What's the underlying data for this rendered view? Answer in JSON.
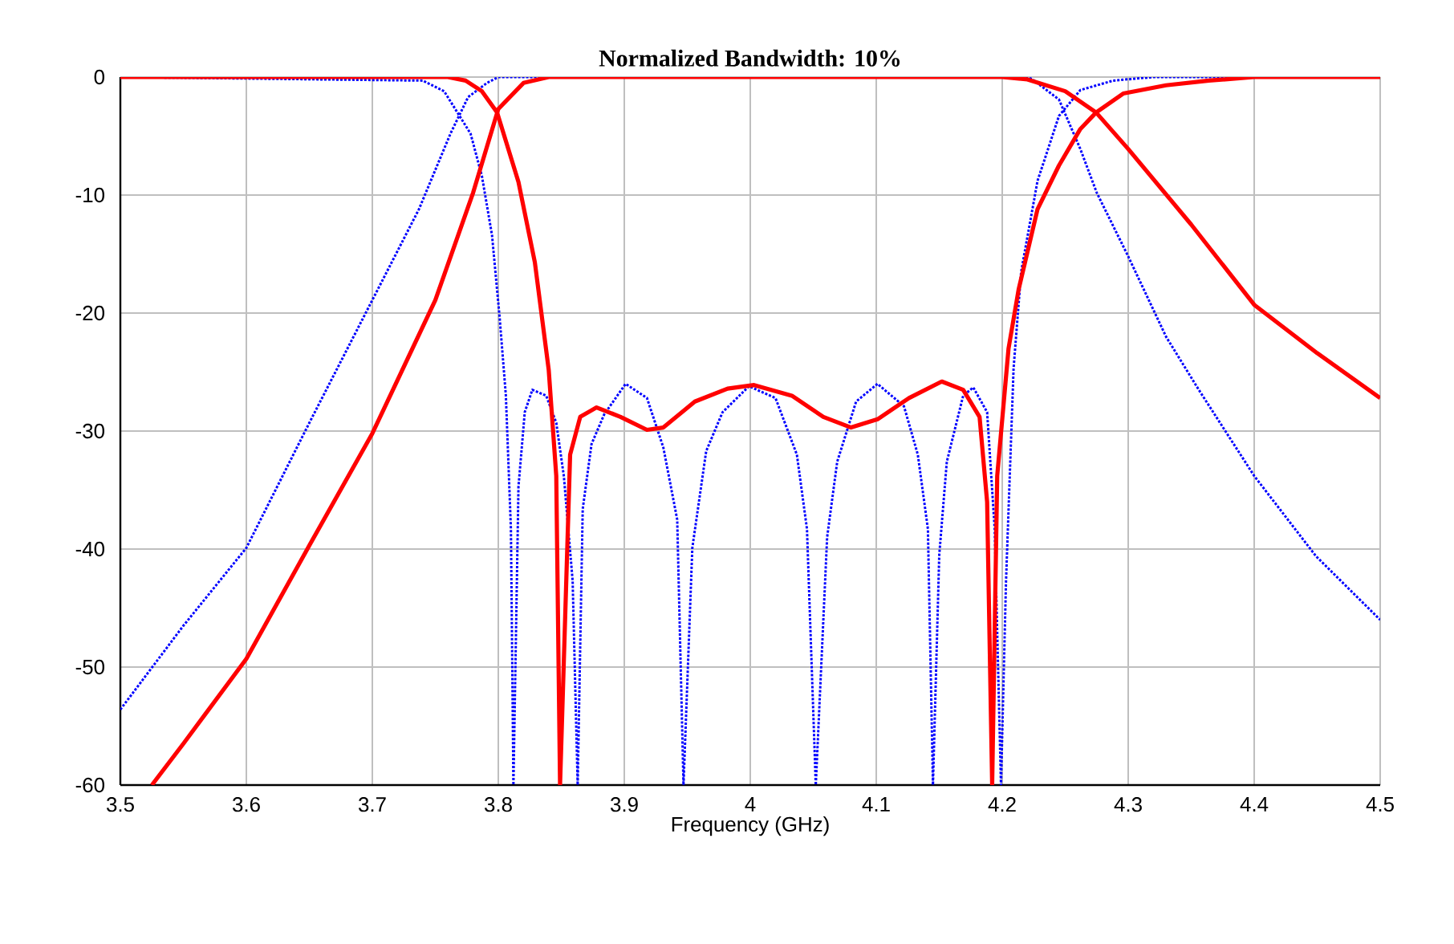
{
  "chart_data": {
    "type": "line",
    "title": "Normalized Bandwidth: 10%",
    "xlabel": "Frequency (GHz)",
    "xlim": [
      3.5,
      4.5
    ],
    "ylim": [
      -60,
      0
    ],
    "xticks": [
      3.5,
      3.6,
      3.7,
      3.8,
      3.9,
      4,
      4.1,
      4.2,
      4.3,
      4.4,
      4.5
    ],
    "yticks": [
      -60,
      -50,
      -40,
      -30,
      -20,
      -10,
      0
    ],
    "grid": true,
    "marker": "none",
    "series": [
      {
        "color": "#0000ff",
        "line_style": "dotted",
        "x": [
          3.5,
          3.55,
          3.6,
          3.65,
          3.7,
          3.737,
          3.762,
          3.776,
          3.791,
          3.8,
          4.22,
          4.224,
          4.245,
          4.262,
          4.275,
          4.3,
          4.33,
          4.356,
          4.4,
          4.449,
          4.5
        ],
        "values": [
          -53.6,
          -46.5,
          -39.9,
          -29.3,
          -18.9,
          -11.2,
          -4.8,
          -1.7,
          -0.5,
          0,
          0,
          -0.2,
          -1.9,
          -6.1,
          -9.8,
          -15.2,
          -22,
          -26.5,
          -33.8,
          -40.6,
          -46
        ]
      },
      {
        "color": "#0000ff",
        "line_style": "dotted",
        "x": [
          3.5,
          3.74,
          3.757,
          3.778,
          3.787,
          3.795,
          3.801,
          3.806,
          3.81,
          3.812,
          3.816,
          3.821,
          3.827,
          3.838,
          3.846,
          3.852,
          3.859,
          3.863,
          3.867,
          3.874,
          3.884,
          3.901,
          3.918,
          3.931,
          3.942,
          3.947,
          3.954,
          3.965,
          3.978,
          3.999,
          4.02,
          4.037,
          4.045,
          4.052,
          4.061,
          4.069,
          4.084,
          4.101,
          4.122,
          4.133,
          4.141,
          4.145,
          4.15,
          4.156,
          4.169,
          4.177,
          4.188,
          4.194,
          4.199,
          4.203,
          4.209,
          4.215,
          4.228,
          4.245,
          4.262,
          4.288,
          4.32,
          4.5
        ],
        "values": [
          0,
          -0.3,
          -1.2,
          -4.8,
          -8.4,
          -13.4,
          -20.3,
          -27,
          -38.3,
          -60,
          -34.7,
          -28.4,
          -26.5,
          -27,
          -29.3,
          -33.8,
          -42.7,
          -60,
          -36.6,
          -31.1,
          -28.6,
          -26,
          -27.2,
          -31.4,
          -37.5,
          -60,
          -39.9,
          -31.7,
          -28.4,
          -26.2,
          -27.2,
          -32,
          -38.3,
          -60,
          -39,
          -32.6,
          -27.5,
          -26,
          -27.9,
          -32,
          -38.3,
          -60,
          -40.5,
          -32.6,
          -27,
          -26.3,
          -28.4,
          -38.3,
          -60,
          -42.7,
          -24.7,
          -16.5,
          -8.8,
          -3.3,
          -1.1,
          -0.3,
          0,
          0
        ]
      },
      {
        "color": "#ff0000",
        "line_style": "solid",
        "x": [
          3.525,
          3.55,
          3.6,
          3.65,
          3.7,
          3.75,
          3.78,
          3.8,
          3.82,
          3.84,
          4.2,
          4.22,
          4.25,
          4.2745,
          4.3,
          4.35,
          4.4,
          4.45,
          4.5
        ],
        "values": [
          -60,
          -56.5,
          -49.3,
          -39.7,
          -30.2,
          -18.9,
          -9.8,
          -2.7,
          -0.5,
          0,
          0,
          -0.2,
          -1.2,
          -3,
          -6.1,
          -12.5,
          -19.3,
          -23.4,
          -27.2
        ]
      },
      {
        "color": "#ff0000",
        "line_style": "solid",
        "x": [
          3.5,
          3.76,
          3.774,
          3.787,
          3.799,
          3.816,
          3.829,
          3.84,
          3.846,
          3.849,
          3.857,
          3.865,
          3.878,
          3.897,
          3.918,
          3.931,
          3.956,
          3.982,
          4.003,
          4.033,
          4.058,
          4.08,
          4.101,
          4.126,
          4.152,
          4.169,
          4.182,
          4.188,
          4.192,
          4.196,
          4.205,
          4.213,
          4.228,
          4.245,
          4.262,
          4.2745,
          4.296,
          4.33,
          4.364,
          4.4,
          4.5
        ],
        "values": [
          0,
          0,
          -0.3,
          -1.2,
          -3,
          -8.9,
          -15.7,
          -24.8,
          -33.8,
          -60,
          -32,
          -28.8,
          -28,
          -28.8,
          -29.9,
          -29.7,
          -27.5,
          -26.4,
          -26.1,
          -27,
          -28.8,
          -29.7,
          -29,
          -27.2,
          -25.8,
          -26.5,
          -28.8,
          -36,
          -60,
          -33.8,
          -23,
          -18,
          -11.2,
          -7.5,
          -4.4,
          -3,
          -1.4,
          -0.7,
          -0.3,
          0,
          0
        ]
      }
    ]
  }
}
